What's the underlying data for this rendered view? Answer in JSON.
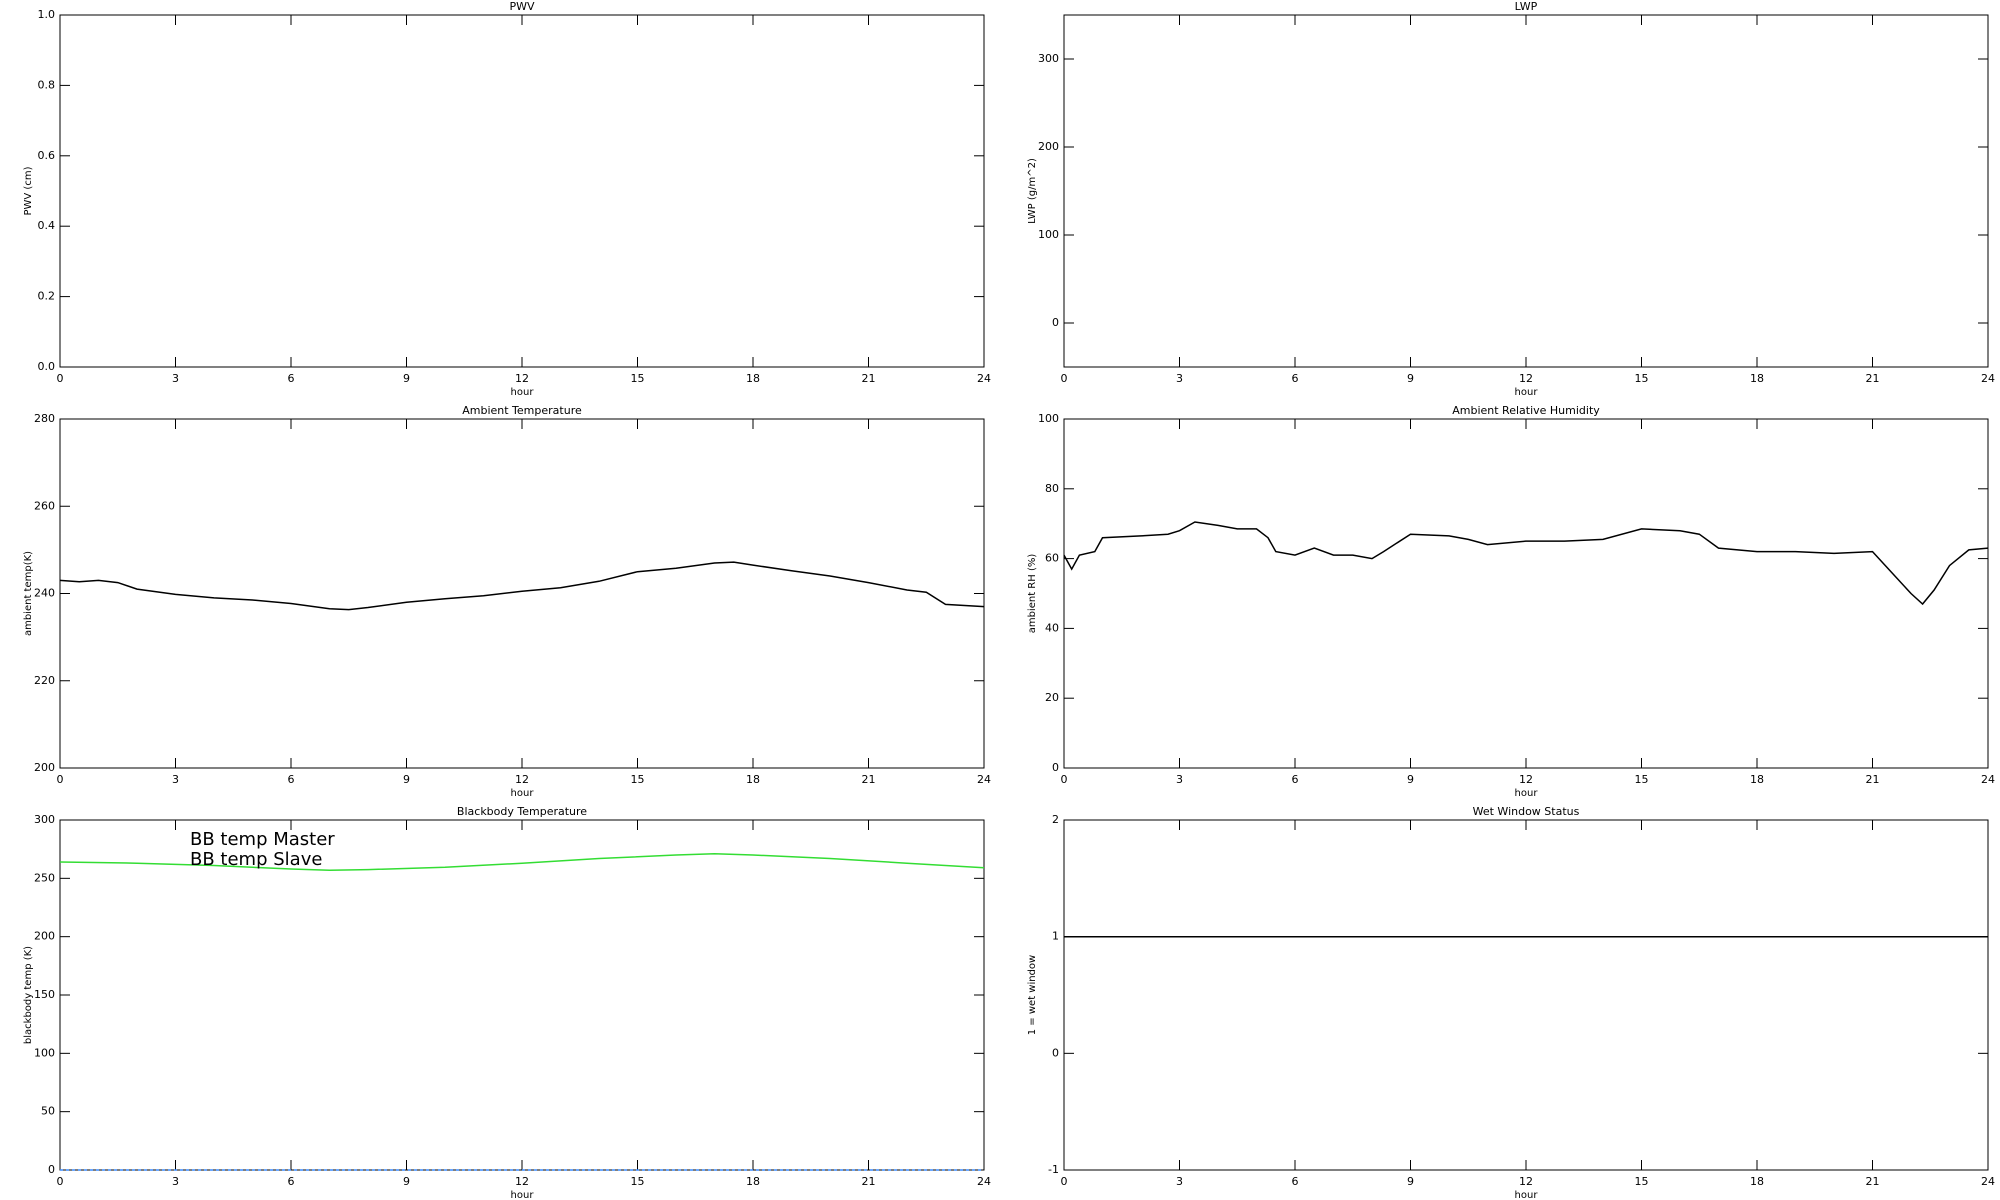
{
  "chart_data": [
    {
      "type": "line",
      "title": "PWV",
      "xlabel": "hour",
      "ylabel": "PWV (cm)",
      "xlim": [
        0,
        24
      ],
      "xticks": [
        0,
        3,
        6,
        9,
        12,
        15,
        18,
        21,
        24
      ],
      "ylim": [
        0,
        1
      ],
      "yticks": [
        {
          "value": 0,
          "label": "0.0"
        },
        {
          "value": 0.2,
          "label": "0.2"
        },
        {
          "value": 0.4,
          "label": "0.4"
        },
        {
          "value": 0.6,
          "label": "0.6"
        },
        {
          "value": 0.8,
          "label": "0.8"
        },
        {
          "value": 1,
          "label": "1.0"
        }
      ],
      "series": []
    },
    {
      "type": "line",
      "title": "LWP",
      "xlabel": "hour",
      "ylabel": "LWP (g/m^2)",
      "xlim": [
        0,
        24
      ],
      "xticks": [
        0,
        3,
        6,
        9,
        12,
        15,
        18,
        21,
        24
      ],
      "ylim": [
        -50,
        350
      ],
      "yticks": [
        0,
        100,
        200,
        300
      ],
      "series": []
    },
    {
      "type": "line",
      "title": "Ambient Temperature",
      "xlabel": "hour",
      "ylabel": "ambient temp(K)",
      "xlim": [
        0,
        24
      ],
      "xticks": [
        0,
        3,
        6,
        9,
        12,
        15,
        18,
        21,
        24
      ],
      "ylim": [
        200,
        280
      ],
      "yticks": [
        200,
        220,
        240,
        260,
        280
      ],
      "series": [
        {
          "color": "#000000",
          "x": [
            0,
            0.5,
            1,
            1.5,
            2,
            3,
            4,
            5,
            6,
            7,
            7.5,
            8,
            9,
            10,
            11,
            12,
            13,
            14,
            15,
            16,
            17,
            17.5,
            18,
            19,
            20,
            21,
            22,
            22.5,
            23,
            24
          ],
          "values": [
            243,
            242.7,
            243,
            242.5,
            241,
            239.8,
            239,
            238.5,
            237.7,
            236.5,
            236.3,
            236.8,
            238,
            238.8,
            239.5,
            240.5,
            241.3,
            242.8,
            245,
            245.8,
            247,
            247.2,
            246.5,
            245.2,
            244,
            242.5,
            240.8,
            240.3,
            237.5,
            237
          ]
        }
      ]
    },
    {
      "type": "line",
      "title": "Ambient Relative Humidity",
      "xlabel": "hour",
      "ylabel": "ambient RH (%)",
      "xlim": [
        0,
        24
      ],
      "xticks": [
        0,
        3,
        6,
        9,
        12,
        15,
        18,
        21,
        24
      ],
      "ylim": [
        0,
        100
      ],
      "yticks": [
        0,
        20,
        40,
        60,
        80,
        100
      ],
      "series": [
        {
          "color": "#000000",
          "x": [
            0,
            0.2,
            0.4,
            0.8,
            1,
            2,
            2.7,
            3,
            3.4,
            4,
            4.5,
            5,
            5.3,
            5.5,
            6,
            6.5,
            7,
            7.5,
            8,
            8.3,
            9,
            10,
            10.5,
            11,
            12,
            13,
            14,
            15,
            16,
            16.5,
            17,
            18,
            19,
            20,
            21,
            21.5,
            22,
            22.3,
            22.6,
            23,
            23.5,
            24
          ],
          "values": [
            61,
            57,
            61,
            62,
            66,
            66.5,
            67,
            68,
            70.5,
            69.5,
            68.5,
            68.5,
            66,
            62,
            61,
            63,
            61,
            61,
            60,
            62,
            67,
            66.5,
            65.5,
            64,
            65,
            65,
            65.5,
            68.5,
            68,
            67,
            63,
            62,
            62,
            61.5,
            62,
            56,
            50,
            47,
            51,
            58,
            62.5,
            63
          ]
        }
      ]
    },
    {
      "type": "line",
      "title": "Blackbody Temperature",
      "xlabel": "hour",
      "ylabel": "blackbody temp (K)",
      "xlim": [
        0,
        24
      ],
      "xticks": [
        0,
        3,
        6,
        9,
        12,
        15,
        18,
        21,
        24
      ],
      "ylim": [
        0,
        300
      ],
      "yticks": [
        0,
        50,
        100,
        150,
        200,
        250,
        300
      ],
      "series": [
        {
          "name": "BB temp Master",
          "color": "#3a8cff",
          "x": [
            0,
            24
          ],
          "values": [
            0,
            0
          ]
        },
        {
          "name": "BB temp Slave",
          "color": "#33dd33",
          "x": [
            0,
            2,
            4,
            6,
            7,
            8,
            10,
            12,
            14,
            16,
            17,
            18,
            20,
            22,
            24
          ],
          "values": [
            264,
            263,
            261,
            258,
            257,
            257.5,
            259.5,
            263,
            267,
            270,
            271,
            270,
            267,
            263,
            259
          ]
        }
      ]
    },
    {
      "type": "line",
      "title": "Wet Window Status",
      "xlabel": "hour",
      "ylabel": "1 = wet window",
      "xlim": [
        0,
        24
      ],
      "xticks": [
        0,
        3,
        6,
        9,
        12,
        15,
        18,
        21,
        24
      ],
      "ylim": [
        -1,
        2
      ],
      "yticks": [
        -1,
        0,
        1,
        2
      ],
      "series": [
        {
          "color": "#000000",
          "x": [
            0,
            24
          ],
          "values": [
            1,
            1
          ]
        }
      ]
    }
  ]
}
